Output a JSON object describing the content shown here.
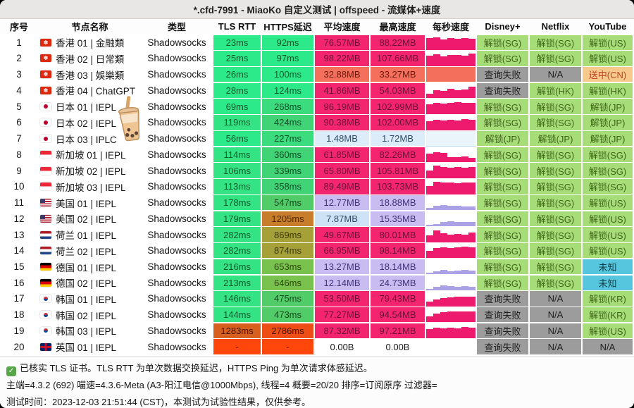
{
  "title": "*.cfd-7991 - MiaoKo 自定义测试 | offspeed - 流媒体+速度",
  "columns": [
    "序号",
    "节点名称",
    "类型",
    "TLS RTT",
    "HTTPS延迟",
    "平均速度",
    "最高速度",
    "每秒速度",
    "Disney+",
    "Netflix",
    "YouTube"
  ],
  "colors": {
    "latency_fast_green": "#2ce98a",
    "latency_mid_green": "#41d477",
    "latency_olive": "#a5a037",
    "latency_orange": "#c77d2b",
    "latency_red": "#ff470c",
    "speed_pink": "#f3256f",
    "speed_salmon": "#f4705c",
    "speed_purple": "#c9bcf0",
    "speed_lightblue": "#dcecf8",
    "unlock_green": "#a7dd78",
    "fail_gray": "#9c9c9c",
    "cn_orange": "#f7c98b",
    "unknown_cyan": "#55c6dd"
  },
  "rows": [
    {
      "n": "1",
      "f": "hk",
      "name": "香港 01 | 金融類",
      "type": "Shadowsocks",
      "t": [
        "23ms",
        "#2ce98a",
        "#0f5c2c"
      ],
      "h": [
        "92ms",
        "#2ce98a",
        "#0f5c2c"
      ],
      "a": [
        "76.57MB",
        "#f3256f",
        "#6d1038"
      ],
      "m": [
        "88.22MB",
        "#f3256f",
        "#6d1038"
      ],
      "c": {
        "bg": "#ffffff",
        "color": "#ee1a6e",
        "bars": [
          0.78,
          0.85,
          0.72,
          0.78,
          0.74,
          0.8,
          0.76
        ]
      },
      "s": [
        [
          "解锁(SG)",
          "ok"
        ],
        [
          "解锁(SG)",
          "ok"
        ],
        [
          "解锁(US)",
          "ok"
        ]
      ]
    },
    {
      "n": "2",
      "f": "hk",
      "name": "香港 02 | 日常類",
      "type": "Shadowsocks",
      "t": [
        "25ms",
        "#2ce98a",
        "#0f5c2c"
      ],
      "h": [
        "97ms",
        "#2ce98a",
        "#0f5c2c"
      ],
      "a": [
        "98.22MB",
        "#f3256f",
        "#6d1038"
      ],
      "m": [
        "107.66MB",
        "#f3256f",
        "#6d1038"
      ],
      "c": {
        "bg": "#ffffff",
        "color": "#ee1a6e",
        "bars": [
          0.7,
          0.8,
          0.66,
          0.74,
          0.72,
          0.7,
          0.84
        ]
      },
      "s": [
        [
          "解锁(SG)",
          "ok"
        ],
        [
          "解锁(SG)",
          "ok"
        ],
        [
          "解锁(US)",
          "ok"
        ]
      ]
    },
    {
      "n": "3",
      "f": "hk",
      "name": "香港 03 | 娛樂類",
      "type": "Shadowsocks",
      "t": [
        "26ms",
        "#2ce98a",
        "#0f5c2c"
      ],
      "h": [
        "100ms",
        "#2ce98a",
        "#0f5c2c"
      ],
      "a": [
        "32.88MB",
        "#f4705c",
        "#6d1a0e"
      ],
      "m": [
        "33.27MB",
        "#f4705c",
        "#6d1a0e"
      ],
      "c": {
        "bg": "#ffffff",
        "color": "#f4705c",
        "bars": [
          1,
          1,
          1,
          1,
          1,
          1,
          1
        ]
      },
      "s": [
        [
          "查询失败",
          "fail"
        ],
        [
          "N/A",
          "na"
        ],
        [
          "送中(CN)",
          "cn"
        ]
      ]
    },
    {
      "n": "4",
      "f": "hk",
      "name": "香港 04 | ChatGPT",
      "type": "Shadowsocks",
      "t": [
        "28ms",
        "#2ce98a",
        "#0f5c2c"
      ],
      "h": [
        "124ms",
        "#2ce98a",
        "#0f5c2c"
      ],
      "a": [
        "41.86MB",
        "#f3256f",
        "#6d1038"
      ],
      "m": [
        "54.03MB",
        "#f3256f",
        "#6d1038"
      ],
      "c": {
        "bg": "#ffffff",
        "color": "#ee1a6e",
        "bars": [
          0.3,
          0.52,
          0.48,
          0.62,
          0.52,
          0.58,
          0.75
        ]
      },
      "s": [
        [
          "查询失败",
          "fail"
        ],
        [
          "解锁(HK)",
          "ok"
        ],
        [
          "解锁(HK)",
          "ok"
        ]
      ]
    },
    {
      "n": "5",
      "f": "jp",
      "name": "日本 01 | IEPL",
      "type": "Shadowsocks",
      "t": [
        "69ms",
        "#2ce98a",
        "#0f5c2c"
      ],
      "h": [
        "268ms",
        "#3bdc7d",
        "#115227"
      ],
      "a": [
        "96.19MB",
        "#f3256f",
        "#6d1038"
      ],
      "m": [
        "102.99MB",
        "#f3256f",
        "#6d1038"
      ],
      "c": {
        "bg": "#ffffff",
        "color": "#ee1a6e",
        "bars": [
          0.64,
          0.74,
          0.7,
          0.72,
          0.78,
          0.72,
          0.75
        ]
      },
      "s": [
        [
          "解锁(SG)",
          "ok"
        ],
        [
          "解锁(SG)",
          "ok"
        ],
        [
          "解锁(JP)",
          "ok"
        ]
      ]
    },
    {
      "n": "6",
      "f": "jp",
      "name": "日本 02 | IEPL",
      "type": "Shadowsocks",
      "t": [
        "119ms",
        "#33e384",
        "#0f5c2c"
      ],
      "h": [
        "424ms",
        "#41d477",
        "#124d25"
      ],
      "a": [
        "90.38MB",
        "#f3256f",
        "#6d1038"
      ],
      "m": [
        "102.00MB",
        "#f3256f",
        "#6d1038"
      ],
      "c": {
        "bg": "#ffffff",
        "color": "#ee1a6e",
        "bars": [
          0.6,
          0.7,
          0.64,
          0.7,
          0.65,
          0.72,
          0.68
        ]
      },
      "s": [
        [
          "解锁(SG)",
          "ok"
        ],
        [
          "解锁(SG)",
          "ok"
        ],
        [
          "解锁(JP)",
          "ok"
        ]
      ]
    },
    {
      "n": "7",
      "f": "jp",
      "name": "日本 03 | IPLC",
      "type": "Shadowsocks",
      "t": [
        "56ms",
        "#2ce98a",
        "#0f5c2c"
      ],
      "h": [
        "227ms",
        "#3bdc7d",
        "#115227"
      ],
      "a": [
        "1.48MB",
        "#dcecf8",
        "#2c4a66"
      ],
      "m": [
        "1.72MB",
        "#dcecf8",
        "#2c4a66"
      ],
      "c": {
        "bg": "#e9f5fb",
        "color": "#bcd8ea",
        "bars": [
          0.04,
          0.03,
          0.04,
          0.03,
          0.04,
          0.03,
          0.04
        ]
      },
      "s": [
        [
          "解锁(JP)",
          "ok"
        ],
        [
          "解锁(JP)",
          "ok"
        ],
        [
          "解锁(JP)",
          "ok"
        ]
      ]
    },
    {
      "n": "8",
      "f": "sg",
      "name": "新加坡 01 | IEPL",
      "type": "Shadowsocks",
      "t": [
        "114ms",
        "#33e384",
        "#0f5c2c"
      ],
      "h": [
        "360ms",
        "#41d477",
        "#124d25"
      ],
      "a": [
        "61.85MB",
        "#f3256f",
        "#6d1038"
      ],
      "m": [
        "82.26MB",
        "#f3256f",
        "#6d1038"
      ],
      "c": {
        "bg": "#ffffff",
        "color": "#ee1a6e",
        "bars": [
          0.55,
          0.66,
          0.6,
          0.34,
          0.32,
          0.36,
          0.3
        ]
      },
      "s": [
        [
          "解锁(SG)",
          "ok"
        ],
        [
          "解锁(SG)",
          "ok"
        ],
        [
          "解锁(SG)",
          "ok"
        ]
      ]
    },
    {
      "n": "9",
      "f": "sg",
      "name": "新加坡 02 | IEPL",
      "type": "Shadowsocks",
      "t": [
        "106ms",
        "#33e384",
        "#0f5c2c"
      ],
      "h": [
        "339ms",
        "#41d477",
        "#124d25"
      ],
      "a": [
        "65.80MB",
        "#f3256f",
        "#6d1038"
      ],
      "m": [
        "105.81MB",
        "#f3256f",
        "#6d1038"
      ],
      "c": {
        "bg": "#ffffff",
        "color": "#ee1a6e",
        "bars": [
          0.5,
          0.85,
          0.74,
          0.7,
          0.75,
          0.7,
          0.73
        ]
      },
      "s": [
        [
          "解锁(SG)",
          "ok"
        ],
        [
          "解锁(SG)",
          "ok"
        ],
        [
          "解锁(SG)",
          "ok"
        ]
      ]
    },
    {
      "n": "10",
      "f": "sg",
      "name": "新加坡 03 | IEPL",
      "type": "Shadowsocks",
      "t": [
        "113ms",
        "#33e384",
        "#0f5c2c"
      ],
      "h": [
        "358ms",
        "#41d477",
        "#124d25"
      ],
      "a": [
        "89.49MB",
        "#f3256f",
        "#6d1038"
      ],
      "m": [
        "103.73MB",
        "#f3256f",
        "#6d1038"
      ],
      "c": {
        "bg": "#ffffff",
        "color": "#ee1a6e",
        "bars": [
          0.55,
          0.82,
          0.75,
          0.78,
          0.74,
          0.78,
          0.76
        ]
      },
      "s": [
        [
          "解锁(SG)",
          "ok"
        ],
        [
          "解锁(SG)",
          "ok"
        ],
        [
          "解锁(SG)",
          "ok"
        ]
      ]
    },
    {
      "n": "11",
      "f": "us",
      "name": "美国 01 | IEPL",
      "type": "Shadowsocks",
      "t": [
        "178ms",
        "#33e384",
        "#0f5c2c"
      ],
      "h": [
        "547ms",
        "#52cc68",
        "#174a1e"
      ],
      "a": [
        "12.77MB",
        "#c9bcf0",
        "#40337a"
      ],
      "m": [
        "18.88MB",
        "#c9bcf0",
        "#40337a"
      ],
      "c": {
        "bg": "#ffffff",
        "color": "#aba1e6",
        "bars": [
          0.15,
          0.28,
          0.34,
          0.28,
          0.28,
          0.25,
          0.27
        ]
      },
      "s": [
        [
          "解锁(SG)",
          "ok"
        ],
        [
          "解锁(SG)",
          "ok"
        ],
        [
          "解锁(US)",
          "ok"
        ]
      ]
    },
    {
      "n": "12",
      "f": "us",
      "name": "美国 02 | IEPL",
      "type": "Shadowsocks",
      "t": [
        "179ms",
        "#33e384",
        "#0f5c2c"
      ],
      "h": [
        "1205ms",
        "#c77d2b",
        "#4f2a06"
      ],
      "a": [
        "7.87MB",
        "#cfe3f6",
        "#2c4a66"
      ],
      "m": [
        "15.35MB",
        "#c9bcf0",
        "#40337a"
      ],
      "c": {
        "bg": "#ffffff",
        "color": "#aba1e6",
        "bars": [
          0.1,
          0.16,
          0.27,
          0.33,
          0.28,
          0.3,
          0.26
        ]
      },
      "s": [
        [
          "解锁(SG)",
          "ok"
        ],
        [
          "解锁(SG)",
          "ok"
        ],
        [
          "解锁(US)",
          "ok"
        ]
      ]
    },
    {
      "n": "13",
      "f": "nl",
      "name": "荷兰 01 | IEPL",
      "type": "Shadowsocks",
      "t": [
        "282ms",
        "#33e384",
        "#0f5c2c"
      ],
      "h": [
        "869ms",
        "#a5a037",
        "#3f3c0c"
      ],
      "a": [
        "49.67MB",
        "#f3256f",
        "#6d1038"
      ],
      "m": [
        "80.01MB",
        "#f3256f",
        "#6d1038"
      ],
      "c": {
        "bg": "#ffffff",
        "color": "#ee1a6e",
        "bars": [
          0.45,
          0.78,
          0.6,
          0.52,
          0.57,
          0.52,
          0.66
        ]
      },
      "s": [
        [
          "解锁(SG)",
          "ok"
        ],
        [
          "解锁(SG)",
          "ok"
        ],
        [
          "解锁(US)",
          "ok"
        ]
      ]
    },
    {
      "n": "14",
      "f": "nl",
      "name": "荷兰 02 | IEPL",
      "type": "Shadowsocks",
      "t": [
        "282ms",
        "#33e384",
        "#0f5c2c"
      ],
      "h": [
        "874ms",
        "#a5a037",
        "#3f3c0c"
      ],
      "a": [
        "66.95MB",
        "#f3256f",
        "#6d1038"
      ],
      "m": [
        "98.14MB",
        "#f3256f",
        "#6d1038"
      ],
      "c": {
        "bg": "#ffffff",
        "color": "#ee1a6e",
        "bars": [
          0.5,
          0.68,
          0.72,
          0.68,
          0.72,
          0.78,
          0.72
        ]
      },
      "s": [
        [
          "解锁(SG)",
          "ok"
        ],
        [
          "解锁(SG)",
          "ok"
        ],
        [
          "解锁(US)",
          "ok"
        ]
      ]
    },
    {
      "n": "15",
      "f": "de",
      "name": "德国 01 | IEPL",
      "type": "Shadowsocks",
      "t": [
        "216ms",
        "#33e384",
        "#0f5c2c"
      ],
      "h": [
        "653ms",
        "#79c24d",
        "#2e4a10"
      ],
      "a": [
        "13.27MB",
        "#c9bcf0",
        "#40337a"
      ],
      "m": [
        "18.14MB",
        "#c9bcf0",
        "#40337a"
      ],
      "c": {
        "bg": "#ffffff",
        "color": "#aba1e6",
        "bars": [
          0.12,
          0.18,
          0.28,
          0.22,
          0.25,
          0.28,
          0.24
        ]
      },
      "s": [
        [
          "解锁(SG)",
          "ok"
        ],
        [
          "解锁(SG)",
          "ok"
        ],
        [
          "未知",
          "unk"
        ]
      ]
    },
    {
      "n": "16",
      "f": "de",
      "name": "德国 02 | IEPL",
      "type": "Shadowsocks",
      "t": [
        "213ms",
        "#33e384",
        "#0f5c2c"
      ],
      "h": [
        "646ms",
        "#79c24d",
        "#2e4a10"
      ],
      "a": [
        "12.14MB",
        "#c9bcf0",
        "#40337a"
      ],
      "m": [
        "24.73MB",
        "#c9bcf0",
        "#40337a"
      ],
      "c": {
        "bg": "#ffffff",
        "color": "#aba1e6",
        "bars": [
          0.1,
          0.22,
          0.33,
          0.27,
          0.24,
          0.27,
          0.22
        ]
      },
      "s": [
        [
          "解锁(SG)",
          "ok"
        ],
        [
          "解锁(SG)",
          "ok"
        ],
        [
          "未知",
          "unk"
        ]
      ]
    },
    {
      "n": "17",
      "f": "kr",
      "name": "韩国 01 | IEPL",
      "type": "Shadowsocks",
      "t": [
        "146ms",
        "#33e384",
        "#0f5c2c"
      ],
      "h": [
        "475ms",
        "#52cc68",
        "#174a1e"
      ],
      "a": [
        "53.50MB",
        "#f3256f",
        "#6d1038"
      ],
      "m": [
        "79.43MB",
        "#f3256f",
        "#6d1038"
      ],
      "c": {
        "bg": "#ffffff",
        "color": "#ee1a6e",
        "bars": [
          0.32,
          0.45,
          0.55,
          0.6,
          0.62,
          0.66,
          0.66
        ]
      },
      "s": [
        [
          "查询失败",
          "fail"
        ],
        [
          "N/A",
          "na"
        ],
        [
          "解锁(KR)",
          "ok"
        ]
      ]
    },
    {
      "n": "18",
      "f": "kr",
      "name": "韩国 02 | IEPL",
      "type": "Shadowsocks",
      "t": [
        "144ms",
        "#33e384",
        "#0f5c2c"
      ],
      "h": [
        "473ms",
        "#52cc68",
        "#174a1e"
      ],
      "a": [
        "77.27MB",
        "#f3256f",
        "#6d1038"
      ],
      "m": [
        "94.54MB",
        "#f3256f",
        "#6d1038"
      ],
      "c": {
        "bg": "#ffffff",
        "color": "#ee1a6e",
        "bars": [
          0.38,
          0.58,
          0.66,
          0.7,
          0.7,
          0.74,
          0.74
        ]
      },
      "s": [
        [
          "查询失败",
          "fail"
        ],
        [
          "N/A",
          "na"
        ],
        [
          "解锁(KR)",
          "ok"
        ]
      ]
    },
    {
      "n": "19",
      "f": "kr",
      "name": "韩国 03 | IEPL",
      "type": "Shadowsocks",
      "t": [
        "1283ms",
        "#d8601f",
        "#431304"
      ],
      "h": [
        "2786ms",
        "#ee4e15",
        "#431304"
      ],
      "a": [
        "87.32MB",
        "#f3256f",
        "#6d1038"
      ],
      "m": [
        "97.21MB",
        "#f3256f",
        "#6d1038"
      ],
      "c": {
        "bg": "#ffffff",
        "color": "#ee1a6e",
        "bars": [
          0.62,
          0.72,
          0.66,
          0.72,
          0.68,
          0.74,
          0.7
        ]
      },
      "s": [
        [
          "查询失败",
          "fail"
        ],
        [
          "N/A",
          "na"
        ],
        [
          "解锁(US)",
          "ok"
        ]
      ]
    },
    {
      "n": "20",
      "f": "gb",
      "name": "英国 01 | IEPL",
      "type": "Shadowsocks",
      "t": [
        "-",
        "#ff470c",
        "#5c1505"
      ],
      "h": [
        "-",
        "#ff470c",
        "#5c1505"
      ],
      "a": [
        "0.00B",
        "#ffffff",
        "#1a1a1a"
      ],
      "m": [
        "0.00B",
        "#ffffff",
        "#1a1a1a"
      ],
      "c": {
        "bg": "#ffffff",
        "color": "#ffffff",
        "bars": [
          0,
          0,
          0,
          0,
          0,
          0,
          0
        ]
      },
      "s": [
        [
          "查询失败",
          "fail"
        ],
        [
          "N/A",
          "na"
        ],
        [
          "N/A",
          "na"
        ]
      ]
    }
  ],
  "footer": {
    "check_icon": "✓",
    "line1": "已核实 TLS 证书。TLS RTT 为单次数据交换延迟，HTTPS Ping 为单次请求体感延迟。",
    "line2": "主端=4.3.2 (692) 喵速=4.3.6-Meta (A3-阳江电信@1000Mbps), 线程=4 概要=20/20 排序=订阅原序 过滤器=",
    "line3": "测试时间：2023-12-03 21:51:44 (CST)，本测试为试验性结果，仅供参考。"
  }
}
